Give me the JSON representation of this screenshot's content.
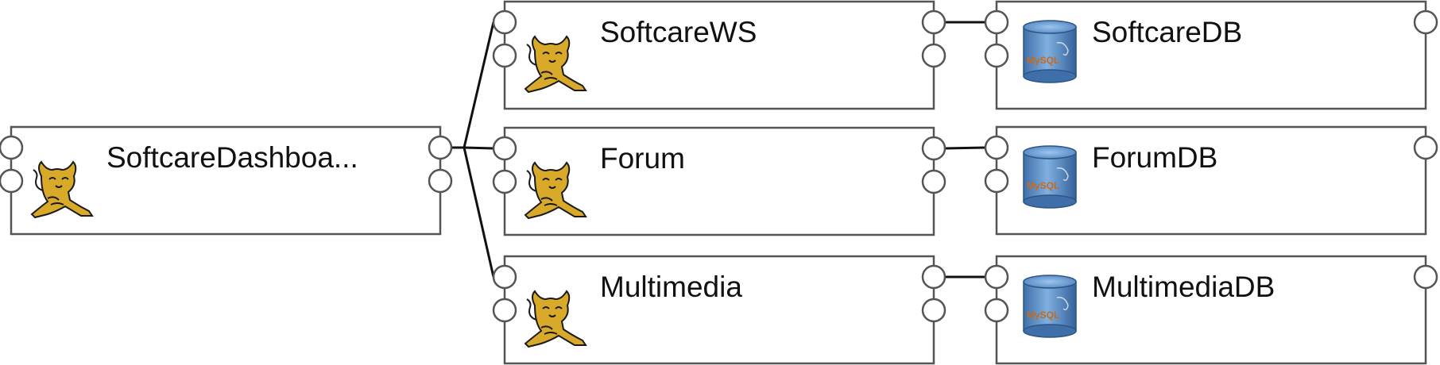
{
  "nodes": [
    {
      "id": "dashboard",
      "label": "SoftcareDashboa...",
      "icon": "tomcat-icon"
    },
    {
      "id": "ws",
      "label": "SoftcareWS",
      "icon": "tomcat-icon"
    },
    {
      "id": "forum",
      "label": "Forum",
      "icon": "tomcat-icon"
    },
    {
      "id": "multimedia",
      "label": "Multimedia",
      "icon": "tomcat-icon"
    },
    {
      "id": "softcaredb",
      "label": "SoftcareDB",
      "icon": "mysql-database-icon"
    },
    {
      "id": "forumdb",
      "label": "ForumDB",
      "icon": "mysql-database-icon"
    },
    {
      "id": "multimediadb",
      "label": "MultimediaDB",
      "icon": "mysql-database-icon"
    }
  ],
  "db_icon_text": "MySQL",
  "connections": [
    {
      "from": "dashboard",
      "to": "ws"
    },
    {
      "from": "dashboard",
      "to": "forum"
    },
    {
      "from": "dashboard",
      "to": "multimedia"
    },
    {
      "from": "ws",
      "to": "softcaredb"
    },
    {
      "from": "forum",
      "to": "forumdb"
    },
    {
      "from": "multimedia",
      "to": "multimediadb"
    }
  ],
  "colors": {
    "box_stroke": "#555555",
    "line": "#111111",
    "tomcat_body": "#d9a92a",
    "db_blue": "#5d8fc7"
  }
}
